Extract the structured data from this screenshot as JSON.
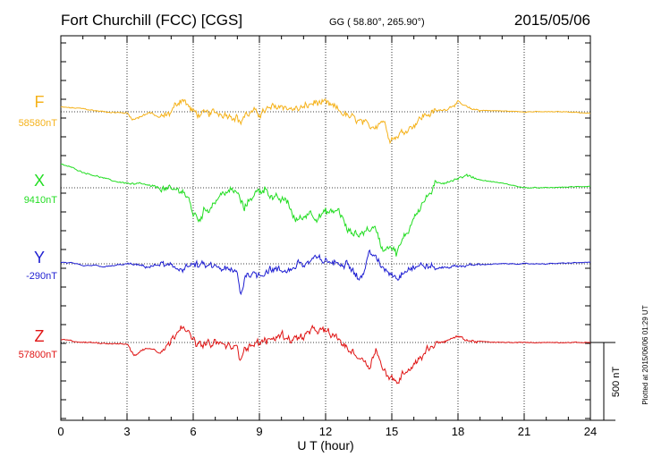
{
  "chart_data": {
    "type": "line",
    "title": "Fort Churchill (FCC)  [CGS]",
    "coordinates": "GG ( 58.80°, 265.90°)",
    "date": "2015/05/06",
    "xlabel": "U T (hour)",
    "xlim": [
      0,
      24
    ],
    "xticks": [
      "0",
      "3",
      "6",
      "9",
      "12",
      "15",
      "18",
      "21",
      "24"
    ],
    "scale_label": "500 nT",
    "plotted_note": "Plotted at 2015/06/06 01:29 UT",
    "grid": true,
    "series": [
      {
        "name": "F",
        "baseline_label": "58580nT",
        "color": "#f5b21b",
        "x": [
          0,
          0.5,
          1,
          1.5,
          2,
          2.5,
          3,
          3.3,
          3.6,
          4,
          4.5,
          4.8,
          5,
          5.2,
          5.5,
          5.8,
          6,
          6.3,
          6.6,
          7,
          7.5,
          8,
          8.1,
          8.3,
          8.7,
          9,
          9.5,
          10,
          10.5,
          11,
          11.5,
          12,
          12.5,
          13,
          13.5,
          14,
          14.3,
          14.6,
          14.9,
          15.1,
          15.3,
          15.6,
          16,
          16.5,
          17,
          17.5,
          18,
          18.5,
          19,
          20,
          21,
          22,
          23,
          24
        ],
        "values": [
          30,
          25,
          20,
          8,
          0,
          -5,
          -8,
          -50,
          -30,
          -5,
          -40,
          -20,
          0,
          40,
          90,
          30,
          0,
          -20,
          -15,
          -5,
          -15,
          -30,
          -80,
          -25,
          -5,
          -10,
          20,
          40,
          15,
          25,
          60,
          50,
          20,
          -30,
          -60,
          -100,
          -80,
          -50,
          -160,
          -170,
          -150,
          -120,
          -80,
          -20,
          0,
          20,
          60,
          20,
          10,
          5,
          0,
          0,
          0,
          -10
        ]
      },
      {
        "name": "X",
        "baseline_label": "9410nT",
        "color": "#22dd22",
        "x": [
          0,
          0.3,
          0.6,
          1,
          1.5,
          2,
          2.5,
          3,
          3.3,
          3.7,
          4,
          4.5,
          5,
          5.5,
          5.8,
          6,
          6.3,
          6.5,
          6.8,
          7,
          7.5,
          8,
          8.3,
          8.6,
          9,
          9.3,
          9.6,
          10,
          10.3,
          10.6,
          11,
          11.3,
          11.6,
          12,
          12.3,
          12.6,
          13,
          13.5,
          14,
          14.3,
          14.6,
          14.9,
          15.2,
          15.5,
          15.8,
          16,
          16.5,
          17,
          17.5,
          18,
          18.5,
          19,
          20,
          21,
          22,
          23,
          24
        ],
        "values": [
          150,
          140,
          125,
          100,
          80,
          60,
          40,
          30,
          20,
          25,
          10,
          0,
          -20,
          -10,
          -80,
          -170,
          -200,
          -150,
          -120,
          -80,
          -20,
          -30,
          -140,
          -60,
          -20,
          0,
          -70,
          -80,
          -90,
          -210,
          -190,
          -150,
          -190,
          -160,
          -160,
          -140,
          -280,
          -300,
          -260,
          -270,
          -400,
          -360,
          -420,
          -340,
          -260,
          -180,
          -80,
          20,
          40,
          60,
          80,
          50,
          30,
          0,
          0,
          5,
          10
        ]
      },
      {
        "name": "Y",
        "baseline_label": "-290nT",
        "color": "#1f1fd2",
        "x": [
          0,
          0.5,
          1,
          1.5,
          2,
          2.5,
          3,
          3.5,
          4,
          4.5,
          5,
          5.3,
          5.6,
          6,
          6.5,
          7,
          7.5,
          8,
          8.15,
          8.4,
          9,
          9.5,
          10,
          10.5,
          10.8,
          11,
          11.5,
          12,
          12.5,
          13,
          13.5,
          13.8,
          14,
          14.3,
          14.6,
          15,
          15.3,
          15.6,
          16,
          16.5,
          17,
          17.5,
          18,
          19,
          20,
          21,
          22,
          23,
          24
        ],
        "values": [
          10,
          5,
          -15,
          -10,
          -20,
          -10,
          0,
          -10,
          -20,
          -5,
          -25,
          -30,
          -20,
          -10,
          -15,
          -20,
          -40,
          -60,
          -200,
          -60,
          -70,
          -30,
          -50,
          -30,
          10,
          -10,
          30,
          20,
          0,
          20,
          -100,
          -40,
          100,
          20,
          -30,
          -60,
          -90,
          -30,
          -20,
          -10,
          -30,
          -20,
          -15,
          -5,
          0,
          0,
          0,
          5,
          10
        ]
      },
      {
        "name": "Z",
        "baseline_label": "57800nT",
        "color": "#e01515",
        "x": [
          0,
          0.5,
          1,
          1.5,
          2,
          2.5,
          3,
          3.3,
          3.6,
          4,
          4.5,
          4.8,
          5,
          5.2,
          5.5,
          5.8,
          6,
          6.3,
          6.6,
          7,
          7.5,
          8,
          8.1,
          8.3,
          8.7,
          9,
          9.5,
          10,
          10.5,
          11,
          11.5,
          12,
          12.5,
          13,
          13.5,
          14,
          14.3,
          14.6,
          14.9,
          15.1,
          15.3,
          15.6,
          16,
          16.5,
          17,
          17.5,
          18,
          18.5,
          19,
          20,
          21,
          22,
          23,
          24
        ],
        "values": [
          20,
          10,
          0,
          0,
          -5,
          -8,
          -10,
          -80,
          -60,
          -30,
          -60,
          -30,
          10,
          60,
          130,
          50,
          10,
          -20,
          -15,
          0,
          -20,
          -40,
          -110,
          -30,
          -10,
          -5,
          20,
          50,
          20,
          40,
          80,
          70,
          30,
          -40,
          -90,
          -150,
          -30,
          -180,
          -220,
          -260,
          -240,
          -180,
          -140,
          -60,
          0,
          10,
          40,
          10,
          5,
          0,
          0,
          0,
          0,
          0
        ]
      }
    ]
  }
}
